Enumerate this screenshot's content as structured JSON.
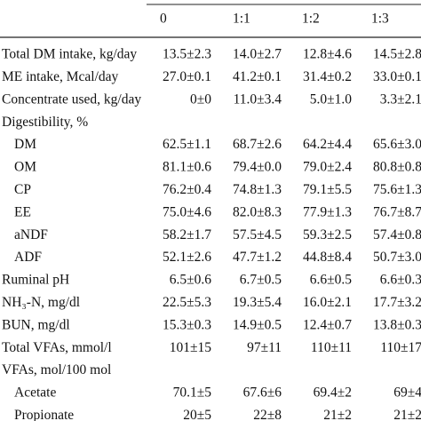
{
  "table": {
    "columns": [
      "0",
      "1:1",
      "1:2",
      "1:3"
    ],
    "rows": [
      {
        "label": "Total DM intake, kg/day",
        "values": [
          "13.5±2.3",
          "14.0±2.7",
          "12.8±4.6",
          "14.5±2.8"
        ]
      },
      {
        "label": "ME intake, Mcal/day",
        "values": [
          "27.0±0.1",
          "41.2±0.1",
          "31.4±0.2",
          "33.0±0.1"
        ]
      },
      {
        "label": "Concentrate used, kg/day",
        "values": [
          "0±0",
          "11.0±3.4",
          "5.0±1.0",
          "3.3±2.1"
        ]
      },
      {
        "label": "Digestibility, %"
      },
      {
        "label": "DM",
        "indent": true,
        "values": [
          "62.5±1.1",
          "68.7±2.6",
          "64.2±4.4",
          "65.6±3.0"
        ]
      },
      {
        "label": "OM",
        "indent": true,
        "values": [
          "81.1±0.6",
          "79.4±0.0",
          "79.0±2.4",
          "80.8±0.8"
        ]
      },
      {
        "label": "CP",
        "indent": true,
        "values": [
          "76.2±0.4",
          "74.8±1.3",
          "79.1±5.5",
          "75.6±1.3"
        ]
      },
      {
        "label": "EE",
        "indent": true,
        "values": [
          "75.0±4.6",
          "82.0±8.3",
          "77.9±1.3",
          "76.7±8.7"
        ]
      },
      {
        "label": "aNDF",
        "indent": true,
        "values": [
          "58.2±1.7",
          "57.5±4.5",
          "59.3±2.5",
          "57.4±0.8"
        ]
      },
      {
        "label": "ADF",
        "indent": true,
        "values": [
          "52.1±2.6",
          "47.7±1.2",
          "44.8±8.4",
          "50.7±3.0"
        ]
      },
      {
        "label": "Ruminal pH",
        "values": [
          "6.5±0.6",
          "6.7±0.5",
          "6.6±0.5",
          "6.6±0.3"
        ]
      },
      {
        "label": "NH₃-N, mg/dl",
        "values": [
          "22.5±5.3",
          "19.3±5.4",
          "16.0±2.1",
          "17.7±3.2"
        ]
      },
      {
        "label": "BUN, mg/dl",
        "values": [
          "15.3±0.3",
          "14.9±0.5",
          "12.4±0.7",
          "13.8±0.3"
        ]
      },
      {
        "label": "Total VFAs, mmol/l",
        "values": [
          "101±15",
          "97±11",
          "110±11",
          "110±17"
        ]
      },
      {
        "label": "VFAs, mol/100 mol"
      },
      {
        "label": "Acetate",
        "indent": true,
        "values": [
          "70.1±5",
          "67.6±6",
          "69.4±2",
          "69±4"
        ]
      },
      {
        "label": "Propionate",
        "indent": true,
        "values": [
          "20±5",
          "22±8",
          "21±2",
          "21±2"
        ]
      }
    ]
  }
}
